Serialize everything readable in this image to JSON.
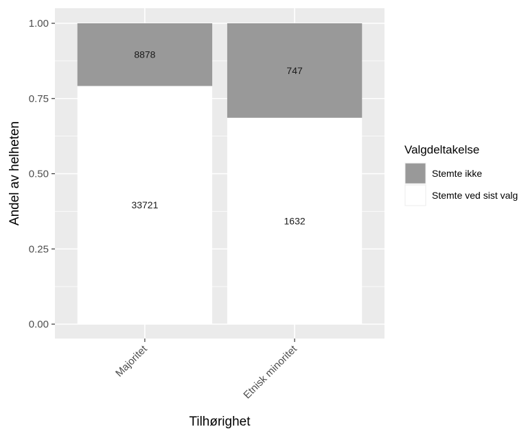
{
  "chart_data": {
    "type": "bar",
    "stacked": true,
    "normalized": true,
    "categories": [
      "Majoritet",
      "Etnisk minoritet"
    ],
    "series": [
      {
        "name": "Stemte ved sist valg",
        "values": [
          33721,
          1632
        ],
        "color": "#ffffff"
      },
      {
        "name": "Stemte ikke",
        "values": [
          8878,
          747
        ],
        "color": "#999999"
      }
    ],
    "xlabel": "Tilhørighet",
    "ylabel": "Andel av helheten",
    "ylim": [
      0,
      1
    ],
    "yticks": [
      "0.00",
      "0.25",
      "0.50",
      "0.75",
      "1.00"
    ],
    "grid": true,
    "panel_background": "#ebebeb",
    "legend": {
      "title": "Valgdeltakelse",
      "placement": "right",
      "items": [
        "Stemte ikke",
        "Stemte ved sist valg"
      ]
    }
  }
}
